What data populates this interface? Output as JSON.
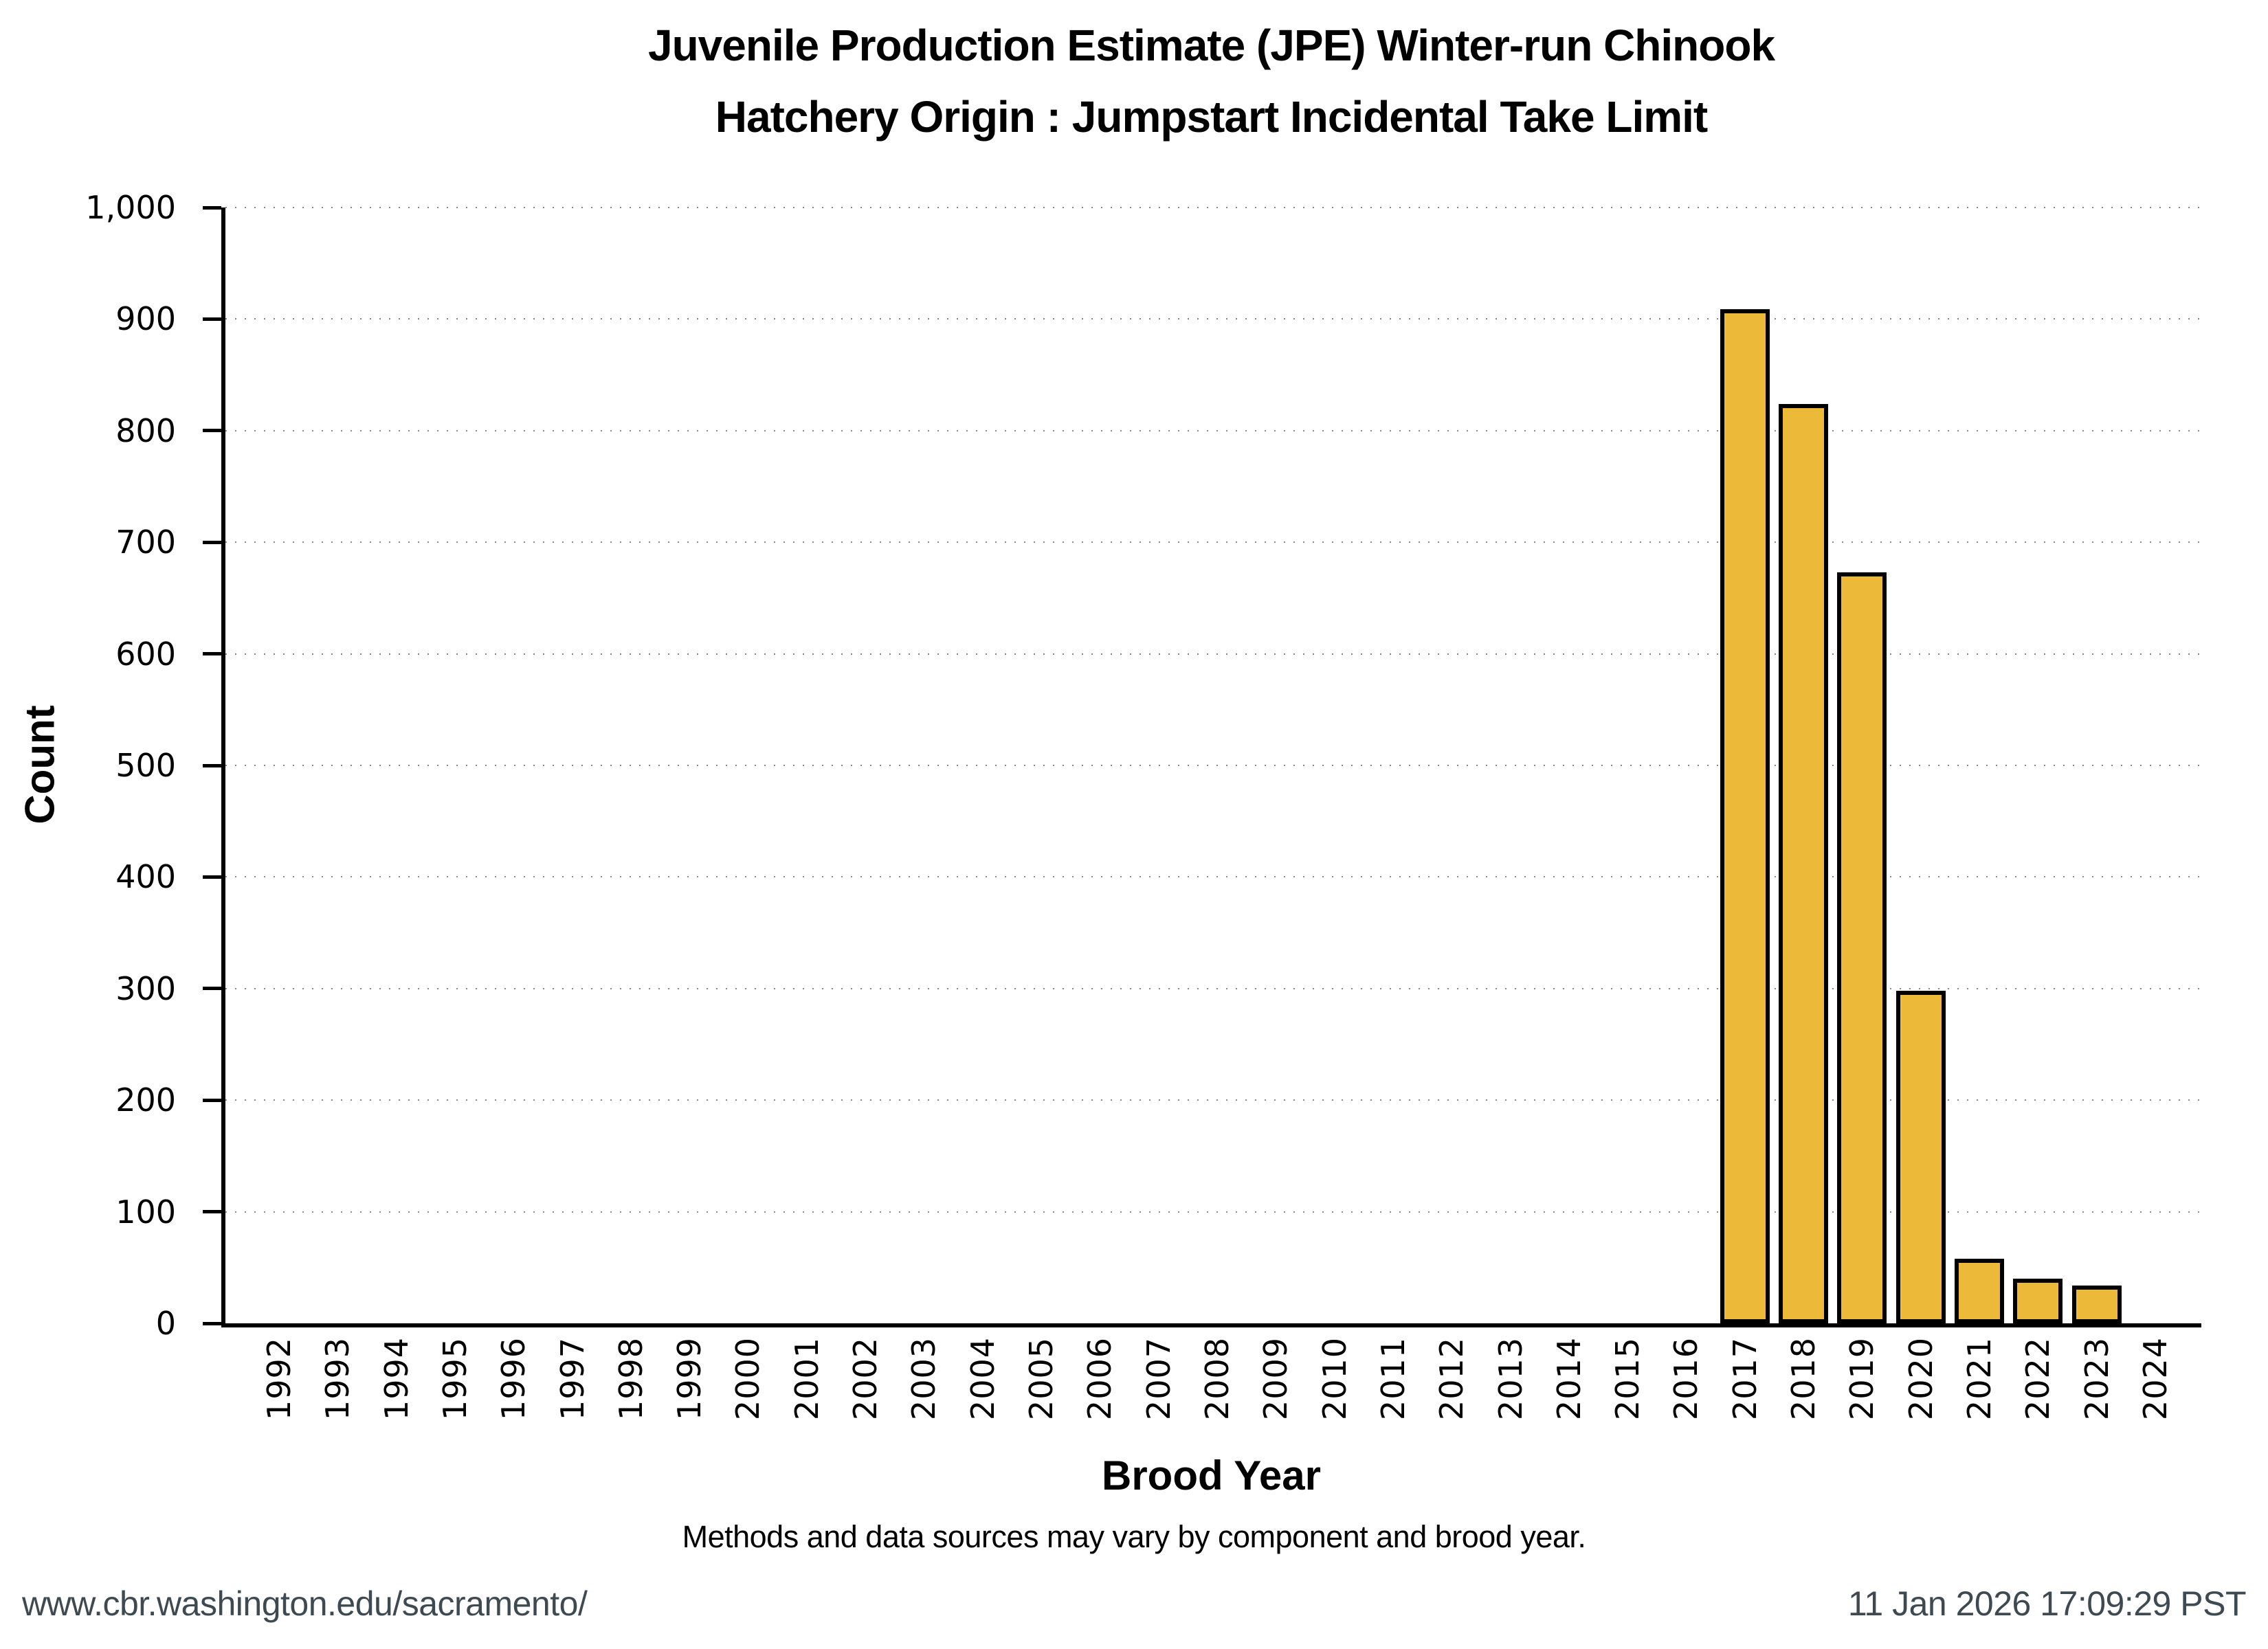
{
  "title": {
    "line1": "Juvenile Production Estimate (JPE) Winter-run Chinook",
    "line2": "Hatchery Origin : Jumpstart Incidental Take Limit"
  },
  "subtitle": "Methods and data sources may vary by component and brood year.",
  "footer": {
    "left": "www.cbr.washington.edu/sacramento/",
    "right": "11 Jan 2026 17:09:29 PST"
  },
  "colors": {
    "bar_fill": "#ecba38",
    "bar_stroke": "#000000",
    "footer_text": "#3e4a52",
    "grid_dots": "#555555",
    "axis": "#000000"
  },
  "chart_data": {
    "type": "bar",
    "title": "Juvenile Production Estimate (JPE) Winter-run Chinook — Hatchery Origin : Jumpstart Incidental Take Limit",
    "xlabel": "Brood Year",
    "ylabel": "Count",
    "ylim": [
      0,
      1000
    ],
    "grid": true,
    "legend_position": "none",
    "y_tick_values": [
      0,
      100,
      200,
      300,
      400,
      500,
      600,
      700,
      800,
      900,
      1000
    ],
    "y_tick_labels": [
      "0",
      "100",
      "200",
      "300",
      "400",
      "500",
      "600",
      "700",
      "800",
      "900",
      "1,000"
    ],
    "categories": [
      1992,
      1993,
      1994,
      1995,
      1996,
      1997,
      1998,
      1999,
      2000,
      2001,
      2002,
      2003,
      2004,
      2005,
      2006,
      2007,
      2008,
      2009,
      2010,
      2011,
      2012,
      2013,
      2014,
      2015,
      2016,
      2017,
      2018,
      2019,
      2020,
      2021,
      2022,
      2023,
      2024
    ],
    "values": [
      0,
      0,
      0,
      0,
      0,
      0,
      0,
      0,
      0,
      0,
      0,
      0,
      0,
      0,
      0,
      0,
      0,
      0,
      0,
      0,
      0,
      0,
      0,
      0,
      0,
      909,
      824,
      673,
      298,
      58,
      40,
      34,
      0
    ]
  }
}
